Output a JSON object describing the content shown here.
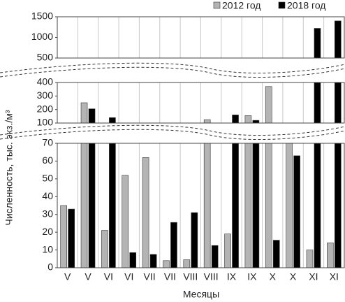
{
  "chart_data": {
    "type": "bar",
    "x_label": "Месяцы",
    "y_label": "Численность, тыс. экз./м³",
    "categories": [
      "V",
      "V",
      "VI",
      "VI",
      "VII",
      "VII",
      "VIII",
      "VIII",
      "IX",
      "IX",
      "X",
      "X",
      "XI",
      "XI"
    ],
    "series": [
      {
        "name": "2012 год",
        "color": "#b4b4b4",
        "values": [
          35,
          250,
          21,
          52,
          62,
          4,
          4.5,
          125,
          19,
          155,
          370,
          90,
          10,
          14
        ]
      },
      {
        "name": "2018 год",
        "color": "#000000",
        "values": [
          33,
          205,
          140,
          8.5,
          7.5,
          25.5,
          31,
          12.5,
          160,
          120,
          15.5,
          63,
          1220,
          1400
        ]
      }
    ],
    "y_panels": [
      {
        "ylim": [
          0,
          70
        ],
        "yticks": [
          0,
          10,
          20,
          30,
          40,
          50,
          60,
          70
        ]
      },
      {
        "ylim": [
          100,
          400
        ],
        "yticks": [
          100,
          200,
          300,
          400
        ]
      },
      {
        "ylim": [
          500,
          1500
        ],
        "yticks": [
          500,
          1000,
          1500
        ]
      }
    ],
    "legend": "top-right"
  }
}
